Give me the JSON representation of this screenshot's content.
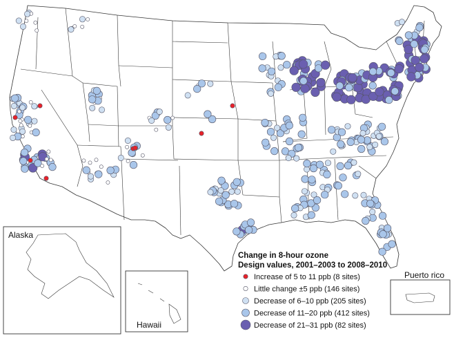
{
  "insets": {
    "alaska": "Alaska",
    "hawaii": "Hawaii",
    "puerto_rico": "Puerto rico"
  },
  "legend": {
    "title_line1": "Change in 8-hour ozone",
    "title_line2": "Design values, 2001–2003 to 2008–2010",
    "items": [
      {
        "label": "Increase of 5 to 11 ppb (8 sites)",
        "color": "#e8222a",
        "category": "increase"
      },
      {
        "label": "Little change ±5 ppb (146 sites)",
        "color": "#ffffff",
        "category": "little"
      },
      {
        "label": "Decrease of 6–10 ppb (205 sites)",
        "color": "#cfe0f2",
        "category": "dec6"
      },
      {
        "label": "Decrease of 11–20 ppb (412 sites)",
        "color": "#a9c6ea",
        "category": "dec11"
      },
      {
        "label": "Decrease of 21–31 ppb (82 sites)",
        "color": "#6a5fb0",
        "category": "dec21"
      }
    ]
  }
}
